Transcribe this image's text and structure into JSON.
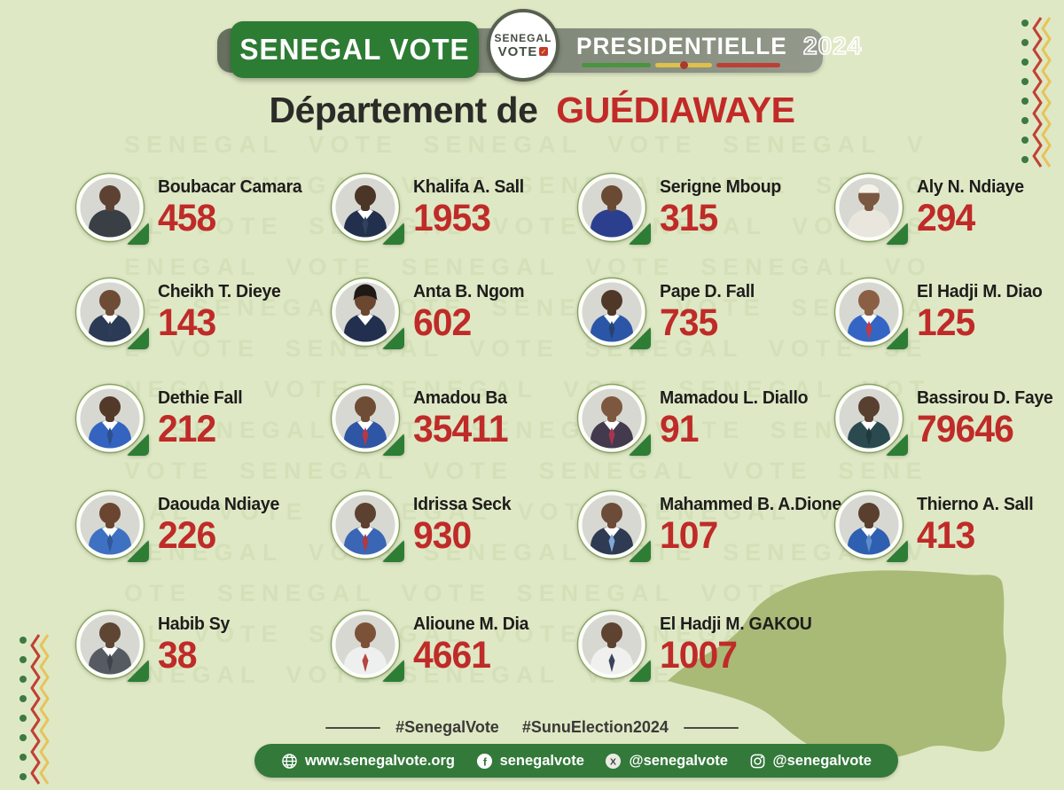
{
  "colors": {
    "background": "#dfe8c5",
    "brand_green": "#2d7c34",
    "accent_red": "#bf2b28",
    "banner_gray": "#7d8576",
    "map_olive": "#a9ba77",
    "text_dark": "#1d1d1b",
    "flag_green": "#4a9440",
    "flag_yellow": "#dec04b",
    "flag_red": "#bc4033"
  },
  "header": {
    "brand_badge": "SENEGAL VOTE",
    "logo_line1": "SENEGAL",
    "logo_line2": "VOTE",
    "banner_title": "PRESIDENTIELLE",
    "banner_year": "2024"
  },
  "title": {
    "prefix": "Département de",
    "highlight": "GUÉDIAWAYE"
  },
  "watermark": "SENEGAL VOTE",
  "candidates": [
    {
      "name": "Boubacar Camara",
      "votes": "458",
      "suit": "#3a3f46",
      "skin": "#5d4233"
    },
    {
      "name": "Khalifa A. Sall",
      "votes": "1953",
      "suit": "#22304d",
      "skin": "#4a3526",
      "tie": "#31415e",
      "shirt": "#ffffff"
    },
    {
      "name": "Serigne Mboup",
      "votes": "315",
      "suit": "#2c3f8f",
      "skin": "#6b4a33"
    },
    {
      "name": "Aly N. Ndiaye",
      "votes": "294",
      "suit": "#e9e7dd",
      "skin": "#7a5741",
      "cap": "#f4f2ea"
    },
    {
      "name": "Cheikh T. Dieye",
      "votes": "143",
      "suit": "#2b3a55",
      "skin": "#6d4b35",
      "tie": "#2e3c57",
      "shirt": "#ffffff"
    },
    {
      "name": "Anta B. Ngom",
      "votes": "602",
      "suit": "#222f4e",
      "skin": "#6b4730",
      "hair": true,
      "shirt": "#ffffff"
    },
    {
      "name": "Pape D. Fall",
      "votes": "735",
      "suit": "#2b56a8",
      "skin": "#4f3828",
      "tie": "#27426f",
      "shirt": "#ffffff"
    },
    {
      "name": "El Hadji M. Diao",
      "votes": "125",
      "suit": "#3465c4",
      "skin": "#8a5f43",
      "tie": "#c23a45",
      "shirt": "#ffffff"
    },
    {
      "name": "Dethie Fall",
      "votes": "212",
      "suit": "#3464c0",
      "skin": "#53392a",
      "tie": "#2c4f8e",
      "shirt": "#ffffff"
    },
    {
      "name": "Amadou Ba",
      "votes": "35411",
      "suit": "#2f55a5",
      "skin": "#6e4c36",
      "tie": "#b93844",
      "shirt": "#ffffff"
    },
    {
      "name": "Mamadou L. Diallo",
      "votes": "91",
      "suit": "#433a4e",
      "skin": "#7d573f",
      "tie": "#a8354f",
      "shirt": "#ffffff"
    },
    {
      "name": "Bassirou D. Faye",
      "votes": "79646",
      "suit": "#2b4a4f",
      "skin": "#57402f",
      "tie": "#1f3a3e",
      "shirt": "#ffffff"
    },
    {
      "name": "Daouda Ndiaye",
      "votes": "226",
      "suit": "#3f71c2",
      "skin": "#6a452f",
      "tie": "#30589a",
      "shirt": "#ffffff"
    },
    {
      "name": "Idrissa Seck",
      "votes": "930",
      "suit": "#3a66b5",
      "skin": "#5d4130",
      "tie": "#b03a41",
      "shirt": "#ffffff"
    },
    {
      "name": "Mahammed B. A.Dione",
      "votes": "107",
      "suit": "#2e3b52",
      "skin": "#6c4c38",
      "tie": "#7fa9d8",
      "shirt": "#ffffff"
    },
    {
      "name": "Thierno A. Sall",
      "votes": "413",
      "suit": "#2f5fb0",
      "skin": "#5a3f2e",
      "tie": "#5d8ec9",
      "shirt": "#ffffff"
    },
    {
      "name": "Habib Sy",
      "votes": "38",
      "suit": "#565b62",
      "skin": "#5f4534",
      "tie": "#3e444c",
      "shirt": "#ffffff"
    },
    {
      "name": "Alioune M. Dia",
      "votes": "4661",
      "suit": "#eef0f0",
      "skin": "#7b5238",
      "tie": "#b5453f",
      "shirt": "#eef0f0"
    },
    {
      "name": "El Hadji M. GAKOU",
      "votes": "1007",
      "suit": "#f0f1ee",
      "skin": "#5f4331",
      "tie": "#39435a",
      "shirt": "#f0f1ee"
    }
  ],
  "footer": {
    "hashtags": [
      "#SenegalVote",
      "#SunuElection2024"
    ],
    "links": [
      {
        "icon": "globe-icon",
        "label": "www.senegalvote.org"
      },
      {
        "icon": "facebook-icon",
        "label": "senegalvote"
      },
      {
        "icon": "x-icon",
        "label": "@senegalvote"
      },
      {
        "icon": "instagram-icon",
        "label": "@senegalvote"
      }
    ]
  },
  "chart_data": {
    "type": "table",
    "title": "Département de GUÉDIAWAYE — Presidentielle 2024 résultats",
    "categories": [
      "Boubacar Camara",
      "Khalifa A. Sall",
      "Serigne Mboup",
      "Aly N. Ndiaye",
      "Cheikh T. Dieye",
      "Anta B. Ngom",
      "Pape D. Fall",
      "El Hadji M. Diao",
      "Dethie Fall",
      "Amadou Ba",
      "Mamadou L. Diallo",
      "Bassirou D. Faye",
      "Daouda Ndiaye",
      "Idrissa Seck",
      "Mahammed B. A.Dione",
      "Thierno A. Sall",
      "Habib Sy",
      "Alioune M. Dia",
      "El Hadji M. GAKOU"
    ],
    "values": [
      458,
      1953,
      315,
      294,
      143,
      602,
      735,
      125,
      212,
      35411,
      91,
      79646,
      226,
      930,
      107,
      413,
      38,
      4661,
      1007
    ]
  }
}
